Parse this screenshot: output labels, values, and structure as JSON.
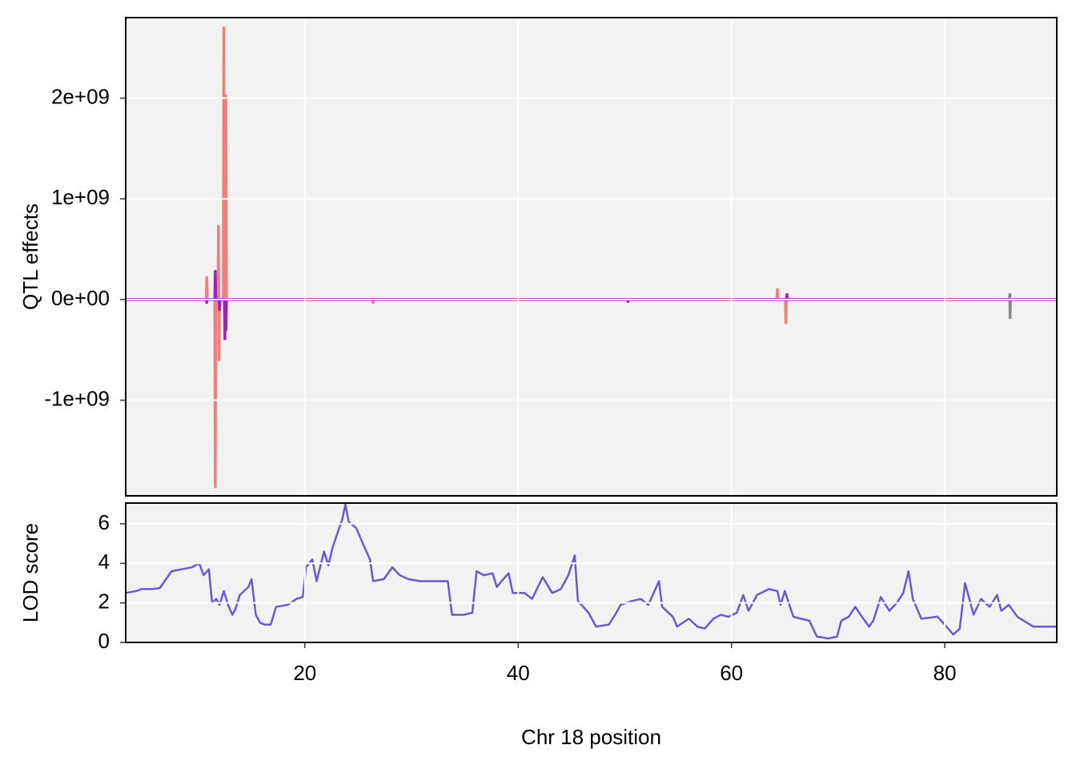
{
  "chart_data": [
    {
      "type": "line",
      "ylabel": "QTL effects",
      "xlim": [
        3.2,
        90.5
      ],
      "xticks": [
        20,
        40,
        60,
        80
      ],
      "ylim": [
        -1950000000,
        2800000000
      ],
      "yticks": [
        {
          "value": -1000000000,
          "label": "-1e+09"
        },
        {
          "value": 0,
          "label": "0e+00"
        },
        {
          "value": 1000000000,
          "label": "1e+09"
        },
        {
          "value": 2000000000,
          "label": "2e+09"
        }
      ],
      "grid": true,
      "series": [
        {
          "color": "#888888",
          "x": [
            3.2,
            86.05,
            86.1,
            86.12,
            86.15,
            90.5
          ],
          "values": [
            0,
            0,
            50000000,
            -180000000,
            0,
            0
          ]
        },
        {
          "color": "#f08080",
          "x": [
            3.2,
            10.75,
            10.8,
            10.85,
            11.55,
            11.6,
            11.65,
            11.85,
            11.9,
            11.95,
            12.0,
            12.35,
            12.4,
            12.45,
            12.55,
            12.6,
            12.65,
            26.35,
            26.4,
            26.45,
            64.25,
            64.3,
            64.35,
            65.05,
            65.1,
            65.15,
            90.5
          ],
          "values": [
            0,
            0,
            220000000,
            0,
            0,
            -1860000000,
            0,
            0,
            730000000,
            -600000000,
            0,
            0,
            2700000000,
            0,
            0,
            2020000000,
            0,
            0,
            -30000000,
            0,
            0,
            100000000,
            0,
            0,
            -230000000,
            0,
            0
          ]
        },
        {
          "color": "#a51fbd",
          "x": [
            3.2,
            10.75,
            10.8,
            10.85,
            11.55,
            11.6,
            11.65,
            11.95,
            12.0,
            12.05,
            12.45,
            12.5,
            12.55,
            12.6,
            12.65,
            50.25,
            50.3,
            50.35,
            65.15,
            65.2,
            65.25,
            90.5
          ],
          "values": [
            0,
            0,
            -30000000,
            0,
            0,
            280000000,
            0,
            0,
            -100000000,
            0,
            0,
            -390000000,
            0,
            -300000000,
            0,
            0,
            -20000000,
            0,
            0,
            50000000,
            0,
            0
          ]
        }
      ]
    },
    {
      "type": "line",
      "ylabel": "LOD score",
      "xlabel": "Chr 18 position",
      "xlim": [
        3.2,
        90.5
      ],
      "xticks": [
        20,
        40,
        60,
        80
      ],
      "ylim": [
        0,
        7.05
      ],
      "yticks": [
        0,
        2,
        4,
        6
      ],
      "grid": true,
      "series": [
        {
          "color": "#6a5acd",
          "x": [
            3.2,
            4.2,
            4.7,
            5.7,
            6.4,
            7.5,
            9.4,
            10.1,
            10.5,
            11.0,
            11.3,
            11.7,
            12.0,
            12.4,
            12.8,
            13.2,
            13.5,
            13.9,
            14.7,
            15.0,
            15.4,
            15.8,
            16.2,
            16.8,
            17.3,
            18.4,
            19.2,
            19.8,
            20.1,
            20.7,
            21.1,
            21.8,
            22.2,
            22.6,
            23.1,
            23.5,
            23.8,
            24.1,
            24.8,
            25.6,
            26.1,
            26.4,
            27.4,
            28.2,
            28.9,
            29.7,
            30.8,
            33.4,
            33.8,
            34.9,
            35.7,
            36.1,
            36.8,
            37.6,
            38.0,
            38.6,
            39.1,
            39.5,
            40.6,
            41.3,
            42.3,
            43.2,
            44.0,
            44.7,
            45.3,
            45.6,
            46.6,
            47.3,
            48.5,
            49.2,
            49.6,
            50.7,
            51.5,
            52.2,
            53.2,
            53.5,
            54.5,
            54.9,
            56.0,
            56.8,
            57.5,
            58.3,
            59.0,
            59.7,
            60.5,
            61.1,
            61.6,
            62.4,
            63.5,
            64.3,
            64.6,
            65.0,
            65.8,
            66.5,
            67.3,
            68.0,
            69.1,
            69.9,
            70.3,
            71.0,
            71.6,
            72.1,
            72.9,
            73.3,
            74.0,
            74.8,
            75.5,
            76.1,
            76.6,
            77.0,
            77.8,
            79.3,
            80.0,
            80.8,
            81.4,
            81.9,
            82.7,
            83.4,
            84.2,
            84.9,
            85.3,
            86.0,
            86.8,
            88.3,
            90.5
          ],
          "values": [
            2.5,
            2.6,
            2.7,
            2.7,
            2.75,
            3.6,
            3.8,
            4.0,
            3.4,
            3.7,
            2.0,
            2.2,
            1.9,
            2.6,
            1.9,
            1.4,
            1.7,
            2.4,
            2.8,
            3.2,
            1.4,
            1.0,
            0.9,
            0.9,
            1.8,
            1.9,
            2.2,
            2.3,
            3.8,
            4.2,
            3.1,
            4.6,
            3.9,
            4.8,
            5.6,
            6.2,
            7.0,
            6.1,
            5.8,
            4.8,
            4.2,
            3.1,
            3.2,
            3.8,
            3.4,
            3.2,
            3.1,
            3.1,
            1.4,
            1.4,
            1.5,
            3.6,
            3.4,
            3.5,
            2.8,
            3.2,
            3.5,
            2.5,
            2.5,
            2.2,
            3.3,
            2.5,
            2.7,
            3.4,
            4.4,
            2.1,
            1.5,
            0.8,
            0.9,
            1.5,
            1.9,
            2.1,
            2.2,
            1.9,
            3.1,
            1.8,
            1.3,
            0.8,
            1.2,
            0.8,
            0.7,
            1.2,
            1.4,
            1.3,
            1.5,
            2.4,
            1.6,
            2.4,
            2.7,
            2.6,
            1.9,
            2.6,
            1.3,
            1.2,
            1.1,
            0.3,
            0.2,
            0.3,
            1.1,
            1.3,
            1.8,
            1.4,
            0.8,
            1.1,
            2.3,
            1.6,
            2.0,
            2.5,
            3.6,
            2.2,
            1.2,
            1.3,
            0.9,
            0.4,
            0.7,
            3.0,
            1.4,
            2.2,
            1.8,
            2.4,
            1.6,
            1.9,
            1.3,
            0.8,
            0.8
          ]
        }
      ]
    }
  ]
}
